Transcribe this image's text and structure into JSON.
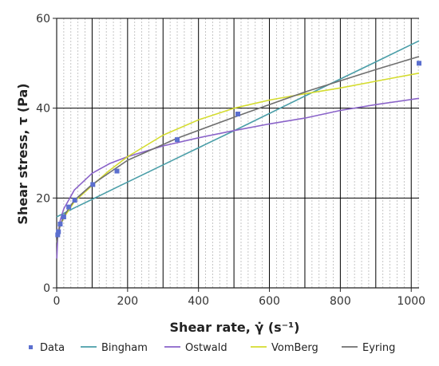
{
  "chart_data": {
    "type": "line",
    "xlabel": "Shear rate, γ̇ (s⁻¹)",
    "ylabel": "Shear stress, τ (Pa)",
    "xlim": [
      0,
      1022
    ],
    "ylim": [
      0,
      60
    ],
    "x_ticks": [
      0,
      200,
      400,
      600,
      800,
      1000
    ],
    "y_ticks": [
      0,
      20,
      40,
      60
    ],
    "x_major_grid": [
      0,
      100,
      200,
      300,
      400,
      500,
      600,
      700,
      800,
      900,
      1000
    ],
    "y_major_grid": [
      0,
      20,
      40,
      60
    ],
    "x_minor_step": 20,
    "grid": true,
    "legend_position": "bottom",
    "data_points": {
      "name": "Data",
      "color": "#5b6fcf",
      "x": [
        3,
        5,
        10,
        20,
        34,
        51,
        102,
        170,
        340,
        511,
        1022
      ],
      "y": [
        11.8,
        12.5,
        14.2,
        15.8,
        18,
        19.5,
        23,
        26,
        33,
        38.7,
        50
      ]
    },
    "series": [
      {
        "name": "Bingham",
        "color": "#4a9ea8",
        "x": [
          0,
          5,
          20,
          50,
          100,
          170,
          340,
          511,
          700,
          900,
          1022
        ],
        "y": [
          15.8,
          16,
          16.6,
          17.8,
          19.7,
          22.4,
          28.9,
          35.4,
          42.7,
          50.3,
          55
        ]
      },
      {
        "name": "Ostwald",
        "color": "#8a63c9",
        "x": [
          0.5,
          3,
          5,
          10,
          20,
          50,
          100,
          150,
          200,
          300,
          400,
          500,
          600,
          700,
          800,
          900,
          1022
        ],
        "y": [
          6.5,
          11.4,
          12.8,
          15,
          17.6,
          21.8,
          25.5,
          27.7,
          29.2,
          31.6,
          33.4,
          35,
          36.5,
          37.8,
          39.5,
          40.8,
          42.2
        ]
      },
      {
        "name": "VomBerg",
        "color": "#d4dc2f",
        "x": [
          0,
          5,
          10,
          20,
          50,
          100,
          150,
          200,
          300,
          400,
          500,
          600,
          700,
          800,
          900,
          1022
        ],
        "y": [
          11.3,
          12.6,
          13.9,
          15.6,
          19.2,
          22.8,
          26.2,
          29.2,
          34,
          37.4,
          40,
          41.8,
          43.2,
          44.5,
          46,
          47.8
        ]
      },
      {
        "name": "Eyring",
        "color": "#6f6f6f",
        "x": [
          0,
          5,
          10,
          20,
          50,
          100,
          200,
          340,
          511,
          700,
          900,
          1022
        ],
        "y": [
          10,
          12.3,
          13.9,
          16,
          19.5,
          23,
          28.4,
          33.3,
          38.3,
          43.6,
          48.6,
          51.5
        ]
      }
    ]
  }
}
